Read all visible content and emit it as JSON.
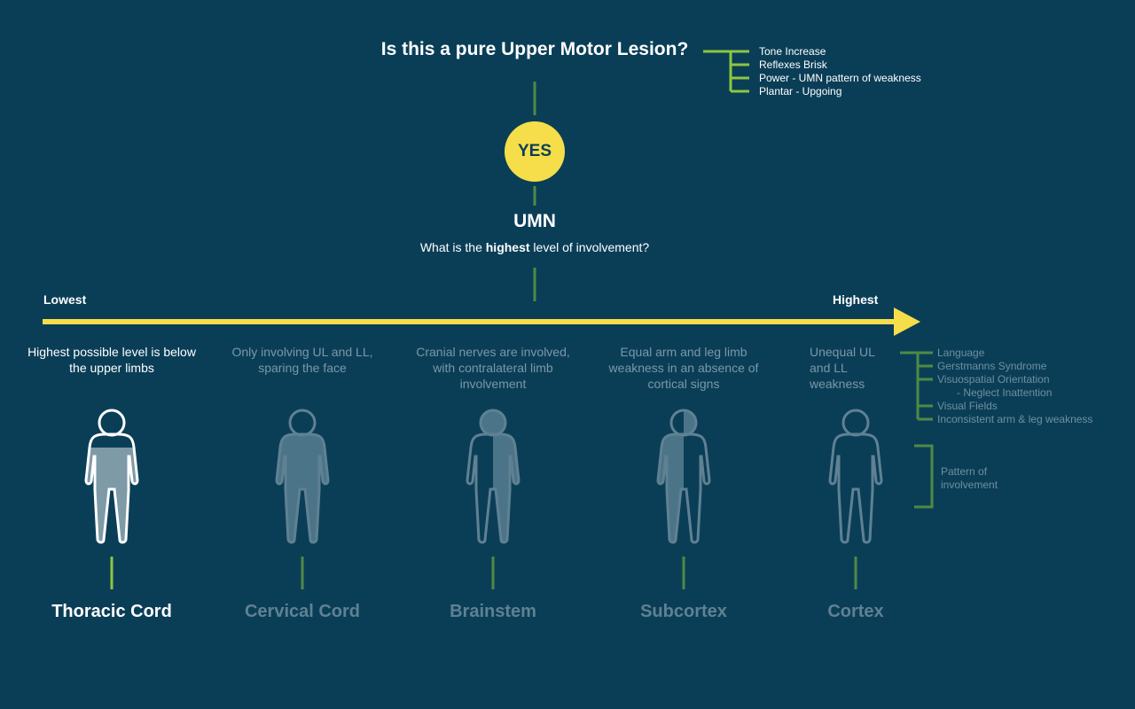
{
  "header": {
    "question": "Is this a pure Upper Motor Lesion?",
    "signs": [
      "Tone Increase",
      "Reflexes Brisk",
      "Power - UMN pattern of weakness",
      "Plantar - Upgoing"
    ]
  },
  "decision": {
    "answer": "YES",
    "title": "UMN",
    "subtitle_pre": "What is the",
    "subtitle_bold": "highest",
    "subtitle_post": "level of involvement?"
  },
  "scale": {
    "lowest_label": "Lowest",
    "highest_label": "Highest"
  },
  "levels": [
    {
      "name": "Thoracic Cord",
      "description": "Highest possible level is below the upper limbs",
      "active": true
    },
    {
      "name": "Cervical Cord",
      "description": "Only involving UL and LL, sparing the face",
      "active": false
    },
    {
      "name": "Brainstem",
      "description": "Cranial nerves are involved, with contralateral limb involvement",
      "active": false
    },
    {
      "name": "Subcortex",
      "description": "Equal arm and leg limb weakness in an absence of cortical signs",
      "active": false
    },
    {
      "name": "Cortex",
      "description": "Unequal UL and LL weakness",
      "active": false
    }
  ],
  "cortex_signs": [
    "Language",
    "Gerstmanns Syndrome",
    "Visuospatial Orientation",
    "- Neglect Inattention",
    "Visual Fields",
    "Inconsistent arm & leg weakness"
  ],
  "pattern_label": "Pattern of involvement",
  "colors": {
    "background": "#0a3e57",
    "accent_yellow": "#f5de4a",
    "bracket_green": "#8dc63f",
    "dim_green": "#4f8a45",
    "dim_text": "#7a98a8"
  }
}
